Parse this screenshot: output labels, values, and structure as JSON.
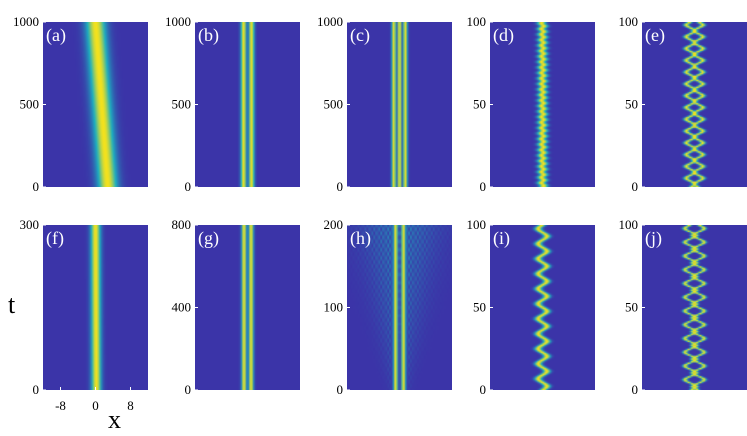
{
  "colors": {
    "background": "#3b34a8",
    "mid": "#1db0c0",
    "peak": "#f5e21c"
  },
  "axis_labels": {
    "x": "x",
    "t": "t"
  },
  "chart_data": [
    {
      "type": "heatmap",
      "label": "(a)",
      "yticks": [
        0,
        500,
        1000
      ],
      "ylim": [
        0,
        1000
      ],
      "xlim": [
        -12,
        12
      ],
      "pattern": "single-drifting",
      "x_start": 0,
      "x_end": 2.8,
      "width": 1.6,
      "ripple": 0
    },
    {
      "type": "heatmap",
      "label": "(b)",
      "yticks": [
        0,
        500,
        1000
      ],
      "ylim": [
        0,
        1000
      ],
      "xlim": [
        -12,
        12
      ],
      "pattern": "double-stationary",
      "peaks": [
        -0.9,
        0.9
      ],
      "width": 0.45
    },
    {
      "type": "heatmap",
      "label": "(c)",
      "yticks": [
        0,
        500,
        1000
      ],
      "ylim": [
        0,
        1000
      ],
      "xlim": [
        -12,
        12
      ],
      "pattern": "multi-stationary",
      "peaks": [
        -1.3,
        0,
        1.3
      ],
      "width": 0.35
    },
    {
      "type": "heatmap",
      "label": "(d)",
      "yticks": [
        0,
        50,
        100
      ],
      "ylim": [
        0,
        100
      ],
      "xlim": [
        -12,
        12
      ],
      "pattern": "single-oscillating",
      "amplitude": 0.3,
      "periods": 30,
      "width": 0.7
    },
    {
      "type": "heatmap",
      "label": "(e)",
      "yticks": [
        0,
        50,
        100
      ],
      "ylim": [
        0,
        100
      ],
      "xlim": [
        -12,
        12
      ],
      "pattern": "double-oscillating",
      "amplitude": 1.0,
      "periods": 14,
      "width": 0.45
    },
    {
      "type": "heatmap",
      "label": "(f)",
      "yticks": [
        0,
        300
      ],
      "ylim": [
        0,
        300
      ],
      "xlim": [
        -12,
        12
      ],
      "xticks": [
        -8,
        0,
        8
      ],
      "pattern": "single-drifting",
      "x_start": 0,
      "x_end": 0.2,
      "width": 0.8,
      "ripple": 0
    },
    {
      "type": "heatmap",
      "label": "(g)",
      "yticks": [
        0,
        400,
        800
      ],
      "ylim": [
        0,
        800
      ],
      "xlim": [
        -12,
        12
      ],
      "pattern": "double-stationary",
      "peaks": [
        -0.8,
        0.8
      ],
      "width": 0.4
    },
    {
      "type": "heatmap",
      "label": "(h)",
      "yticks": [
        0,
        100,
        200
      ],
      "ylim": [
        0,
        200
      ],
      "xlim": [
        -12,
        12
      ],
      "pattern": "radiating",
      "peaks": [
        -0.9,
        0.9
      ],
      "width": 0.35
    },
    {
      "type": "heatmap",
      "label": "(i)",
      "yticks": [
        0,
        50,
        100
      ],
      "ylim": [
        0,
        100
      ],
      "xlim": [
        -12,
        12
      ],
      "pattern": "single-oscillating",
      "amplitude": 1.0,
      "periods": 11,
      "width": 0.6
    },
    {
      "type": "heatmap",
      "label": "(j)",
      "yticks": [
        0,
        50,
        100
      ],
      "ylim": [
        0,
        100
      ],
      "xlim": [
        -12,
        12
      ],
      "pattern": "double-oscillating",
      "amplitude": 1.3,
      "periods": 12,
      "width": 0.4
    }
  ]
}
